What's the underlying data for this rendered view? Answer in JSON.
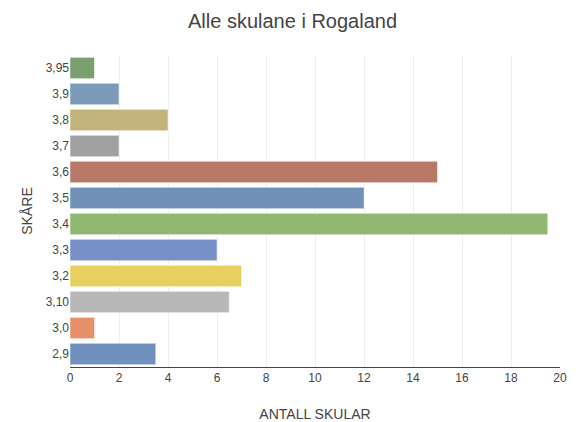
{
  "chart_data": {
    "type": "bar",
    "orientation": "horizontal",
    "title": "Alle skulane i Rogaland",
    "xlabel": "ANTALL SKULAR",
    "ylabel": "SKÅRE",
    "categories": [
      "3,95",
      "3,9",
      "3,8",
      "3,7",
      "3,6",
      "3,5",
      "3,4",
      "3,3",
      "3,2",
      "3,10",
      "3,0",
      "2,9"
    ],
    "values": [
      1,
      2,
      4,
      2,
      15,
      12,
      19.5,
      6,
      7,
      6.5,
      1,
      3.5
    ],
    "colors": [
      "#7a9f6e",
      "#7a9ab8",
      "#c4b47a",
      "#a0a0a0",
      "#b87868",
      "#7090b8",
      "#90b870",
      "#7890c8",
      "#e8d060",
      "#b8b8b8",
      "#e8906a",
      "#7090c0"
    ],
    "xlim": [
      0,
      20
    ],
    "xticks": [
      0,
      2,
      4,
      6,
      8,
      10,
      12,
      14,
      16,
      18,
      20
    ],
    "grid": true
  }
}
